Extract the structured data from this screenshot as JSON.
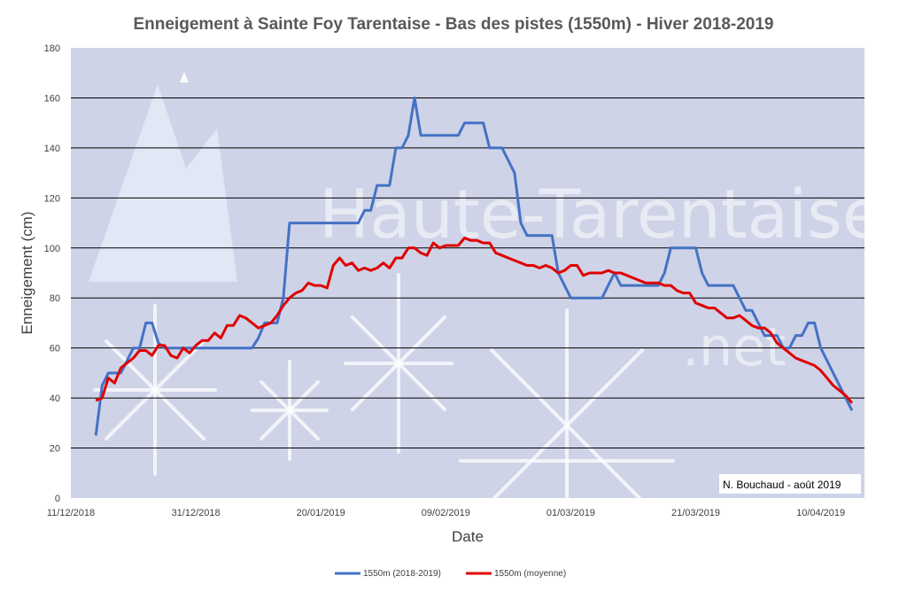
{
  "chart_data": {
    "type": "line",
    "title": "Enneigement à Sainte Foy Tarentaise - Bas des pistes (1550m) - Hiver 2018-2019",
    "xlabel": "Date",
    "ylabel": "Enneigement (cm)",
    "ylim": [
      0,
      180
    ],
    "xlim": [
      "2018-12-11",
      "2019-04-17"
    ],
    "yticks": [
      "0",
      "20",
      "40",
      "60",
      "80",
      "100",
      "120",
      "140",
      "160",
      "180"
    ],
    "xticks": [
      {
        "date": "2018-12-11",
        "label": "11/12/2018"
      },
      {
        "date": "2018-12-31",
        "label": "31/12/2018"
      },
      {
        "date": "2019-01-20",
        "label": "20/01/2019"
      },
      {
        "date": "2019-02-09",
        "label": "09/02/2019"
      },
      {
        "date": "2019-03-01",
        "label": "01/03/2019"
      },
      {
        "date": "2019-03-21",
        "label": "21/03/2019"
      },
      {
        "date": "2019-04-10",
        "label": "10/04/2019"
      }
    ],
    "grid": true,
    "legend_position": "bottom",
    "series": [
      {
        "name": "1550m (2018-2019)",
        "color": "#4472C4",
        "points": [
          [
            "2018-12-15",
            25
          ],
          [
            "2018-12-16",
            45
          ],
          [
            "2018-12-17",
            50
          ],
          [
            "2018-12-19",
            50
          ],
          [
            "2018-12-20",
            55
          ],
          [
            "2018-12-21",
            60
          ],
          [
            "2018-12-22",
            60
          ],
          [
            "2018-12-23",
            70
          ],
          [
            "2018-12-24",
            70
          ],
          [
            "2018-12-25",
            62
          ],
          [
            "2018-12-26",
            60
          ],
          [
            "2019-01-09",
            60
          ],
          [
            "2019-01-10",
            64
          ],
          [
            "2019-01-11",
            70
          ],
          [
            "2019-01-13",
            70
          ],
          [
            "2019-01-14",
            80
          ],
          [
            "2019-01-15",
            110
          ],
          [
            "2019-01-26",
            110
          ],
          [
            "2019-01-27",
            115
          ],
          [
            "2019-01-28",
            115
          ],
          [
            "2019-01-29",
            125
          ],
          [
            "2019-01-31",
            125
          ],
          [
            "2019-02-01",
            140
          ],
          [
            "2019-02-02",
            140
          ],
          [
            "2019-02-03",
            145
          ],
          [
            "2019-02-04",
            160
          ],
          [
            "2019-02-05",
            145
          ],
          [
            "2019-02-11",
            145
          ],
          [
            "2019-02-12",
            150
          ],
          [
            "2019-02-15",
            150
          ],
          [
            "2019-02-16",
            140
          ],
          [
            "2019-02-18",
            140
          ],
          [
            "2019-02-20",
            130
          ],
          [
            "2019-02-21",
            110
          ],
          [
            "2019-02-22",
            105
          ],
          [
            "2019-02-26",
            105
          ],
          [
            "2019-02-27",
            90
          ],
          [
            "2019-03-01",
            80
          ],
          [
            "2019-03-06",
            80
          ],
          [
            "2019-03-07",
            85
          ],
          [
            "2019-03-08",
            90
          ],
          [
            "2019-03-09",
            85
          ],
          [
            "2019-03-15",
            85
          ],
          [
            "2019-03-16",
            90
          ],
          [
            "2019-03-17",
            100
          ],
          [
            "2019-03-21",
            100
          ],
          [
            "2019-03-22",
            90
          ],
          [
            "2019-03-23",
            85
          ],
          [
            "2019-03-27",
            85
          ],
          [
            "2019-03-28",
            80
          ],
          [
            "2019-03-29",
            75
          ],
          [
            "2019-03-30",
            75
          ],
          [
            "2019-03-31",
            70
          ],
          [
            "2019-04-01",
            65
          ],
          [
            "2019-04-03",
            65
          ],
          [
            "2019-04-04",
            60
          ],
          [
            "2019-04-05",
            60
          ],
          [
            "2019-04-06",
            65
          ],
          [
            "2019-04-07",
            65
          ],
          [
            "2019-04-08",
            70
          ],
          [
            "2019-04-09",
            70
          ],
          [
            "2019-04-10",
            60
          ],
          [
            "2019-04-11",
            55
          ],
          [
            "2019-04-12",
            50
          ],
          [
            "2019-04-13",
            45
          ],
          [
            "2019-04-14",
            40
          ],
          [
            "2019-04-15",
            35
          ]
        ]
      },
      {
        "name": "1550m (moyenne)",
        "color": "#E00000",
        "points": [
          [
            "2018-12-15",
            39
          ],
          [
            "2018-12-16",
            40
          ],
          [
            "2018-12-17",
            48
          ],
          [
            "2018-12-18",
            46
          ],
          [
            "2018-12-19",
            52
          ],
          [
            "2018-12-20",
            54
          ],
          [
            "2018-12-21",
            56
          ],
          [
            "2018-12-22",
            59
          ],
          [
            "2018-12-23",
            59
          ],
          [
            "2018-12-24",
            57
          ],
          [
            "2018-12-25",
            61
          ],
          [
            "2018-12-26",
            61
          ],
          [
            "2018-12-27",
            57
          ],
          [
            "2018-12-28",
            56
          ],
          [
            "2018-12-29",
            60
          ],
          [
            "2018-12-30",
            58
          ],
          [
            "2018-12-31",
            61
          ],
          [
            "2019-01-01",
            63
          ],
          [
            "2019-01-02",
            63
          ],
          [
            "2019-01-03",
            66
          ],
          [
            "2019-01-04",
            64
          ],
          [
            "2019-01-05",
            69
          ],
          [
            "2019-01-06",
            69
          ],
          [
            "2019-01-07",
            73
          ],
          [
            "2019-01-08",
            72
          ],
          [
            "2019-01-09",
            70
          ],
          [
            "2019-01-10",
            68
          ],
          [
            "2019-01-11",
            69
          ],
          [
            "2019-01-12",
            70
          ],
          [
            "2019-01-13",
            73
          ],
          [
            "2019-01-14",
            77
          ],
          [
            "2019-01-15",
            80
          ],
          [
            "2019-01-16",
            82
          ],
          [
            "2019-01-17",
            83
          ],
          [
            "2019-01-18",
            86
          ],
          [
            "2019-01-19",
            85
          ],
          [
            "2019-01-20",
            85
          ],
          [
            "2019-01-21",
            84
          ],
          [
            "2019-01-22",
            93
          ],
          [
            "2019-01-23",
            96
          ],
          [
            "2019-01-24",
            93
          ],
          [
            "2019-01-25",
            94
          ],
          [
            "2019-01-26",
            91
          ],
          [
            "2019-01-27",
            92
          ],
          [
            "2019-01-28",
            91
          ],
          [
            "2019-01-29",
            92
          ],
          [
            "2019-01-30",
            94
          ],
          [
            "2019-01-31",
            92
          ],
          [
            "2019-02-01",
            96
          ],
          [
            "2019-02-02",
            96
          ],
          [
            "2019-02-03",
            100
          ],
          [
            "2019-02-04",
            100
          ],
          [
            "2019-02-05",
            98
          ],
          [
            "2019-02-06",
            97
          ],
          [
            "2019-02-07",
            102
          ],
          [
            "2019-02-08",
            100
          ],
          [
            "2019-02-09",
            101
          ],
          [
            "2019-02-11",
            101
          ],
          [
            "2019-02-12",
            104
          ],
          [
            "2019-02-13",
            103
          ],
          [
            "2019-02-14",
            103
          ],
          [
            "2019-02-15",
            102
          ],
          [
            "2019-02-16",
            102
          ],
          [
            "2019-02-17",
            98
          ],
          [
            "2019-02-18",
            97
          ],
          [
            "2019-02-19",
            96
          ],
          [
            "2019-02-20",
            95
          ],
          [
            "2019-02-21",
            94
          ],
          [
            "2019-02-22",
            93
          ],
          [
            "2019-02-23",
            93
          ],
          [
            "2019-02-24",
            92
          ],
          [
            "2019-02-25",
            93
          ],
          [
            "2019-02-26",
            92
          ],
          [
            "2019-02-27",
            90
          ],
          [
            "2019-02-28",
            91
          ],
          [
            "2019-03-01",
            93
          ],
          [
            "2019-03-02",
            93
          ],
          [
            "2019-03-03",
            89
          ],
          [
            "2019-03-04",
            90
          ],
          [
            "2019-03-05",
            90
          ],
          [
            "2019-03-06",
            90
          ],
          [
            "2019-03-07",
            91
          ],
          [
            "2019-03-08",
            90
          ],
          [
            "2019-03-09",
            90
          ],
          [
            "2019-03-10",
            89
          ],
          [
            "2019-03-11",
            88
          ],
          [
            "2019-03-12",
            87
          ],
          [
            "2019-03-13",
            86
          ],
          [
            "2019-03-14",
            86
          ],
          [
            "2019-03-15",
            86
          ],
          [
            "2019-03-16",
            85
          ],
          [
            "2019-03-17",
            85
          ],
          [
            "2019-03-18",
            83
          ],
          [
            "2019-03-19",
            82
          ],
          [
            "2019-03-20",
            82
          ],
          [
            "2019-03-21",
            78
          ],
          [
            "2019-03-22",
            77
          ],
          [
            "2019-03-23",
            76
          ],
          [
            "2019-03-24",
            76
          ],
          [
            "2019-03-25",
            74
          ],
          [
            "2019-03-26",
            72
          ],
          [
            "2019-03-27",
            72
          ],
          [
            "2019-03-28",
            73
          ],
          [
            "2019-03-29",
            71
          ],
          [
            "2019-03-30",
            69
          ],
          [
            "2019-03-31",
            68
          ],
          [
            "2019-04-01",
            68
          ],
          [
            "2019-04-02",
            66
          ],
          [
            "2019-04-03",
            62
          ],
          [
            "2019-04-04",
            60
          ],
          [
            "2019-04-05",
            58
          ],
          [
            "2019-04-06",
            56
          ],
          [
            "2019-04-07",
            55
          ],
          [
            "2019-04-08",
            54
          ],
          [
            "2019-04-09",
            53
          ],
          [
            "2019-04-10",
            51
          ],
          [
            "2019-04-11",
            48
          ],
          [
            "2019-04-12",
            45
          ],
          [
            "2019-04-13",
            43
          ],
          [
            "2019-04-14",
            41
          ],
          [
            "2019-04-15",
            38
          ]
        ]
      }
    ],
    "annotation": "N. Bouchaud - août 2019",
    "watermark": "Haute-Tarentaise",
    "watermark_sub": ".net"
  }
}
